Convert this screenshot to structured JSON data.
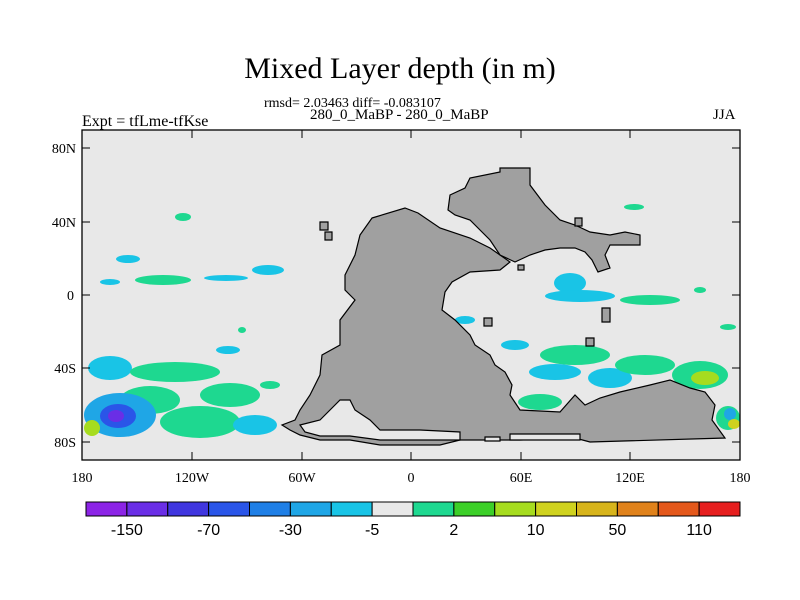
{
  "title": "Mixed Layer depth (in m)",
  "stats": "rmsd= 2.03463 diff= -0.083107",
  "subtitle_center": "280_0_MaBP - 280_0_MaBP",
  "subtitle_left": "Expt = tfLme-tfKse",
  "subtitle_right": "JJA",
  "axes": {
    "x_ticks": [
      "180",
      "120W",
      "60W",
      "0",
      "60E",
      "120E",
      "180"
    ],
    "y_ticks": [
      "80N",
      "40N",
      "0",
      "40S",
      "80S"
    ]
  },
  "colorbar": {
    "colors": [
      "#8c24e6",
      "#6a2ee6",
      "#4036df",
      "#2a55e8",
      "#1f7fe6",
      "#1fa6e6",
      "#19c4e6",
      "#e8e8e8",
      "#1ed890",
      "#3ccf28",
      "#a6dc1f",
      "#cfd21f",
      "#d7b41b",
      "#e0821b",
      "#e4581b",
      "#e61f1f"
    ],
    "labels": [
      "-150",
      "-70",
      "-30",
      "-5",
      "2",
      "10",
      "50",
      "110"
    ]
  },
  "chart_data": {
    "type": "heatmap",
    "title": "Mixed Layer depth (in m)",
    "xlabel": "",
    "ylabel": "",
    "xlim": [
      -180,
      180
    ],
    "ylim": [
      -90,
      90
    ],
    "units": "m",
    "field": "Mixed layer depth difference (tfLme-tfKse), JJA",
    "contour_levels": [
      -150,
      -110,
      -70,
      -50,
      -30,
      -10,
      -5,
      -2,
      2,
      5,
      10,
      30,
      50,
      70,
      110,
      150
    ],
    "x_tick_labels": [
      "180",
      "120W",
      "60W",
      "0",
      "60E",
      "120E",
      "180"
    ],
    "y_tick_labels": [
      "80N",
      "40N",
      "0",
      "40S",
      "80S"
    ],
    "land_color": "#a0a0a0",
    "background_color": "#e8e8e8"
  }
}
